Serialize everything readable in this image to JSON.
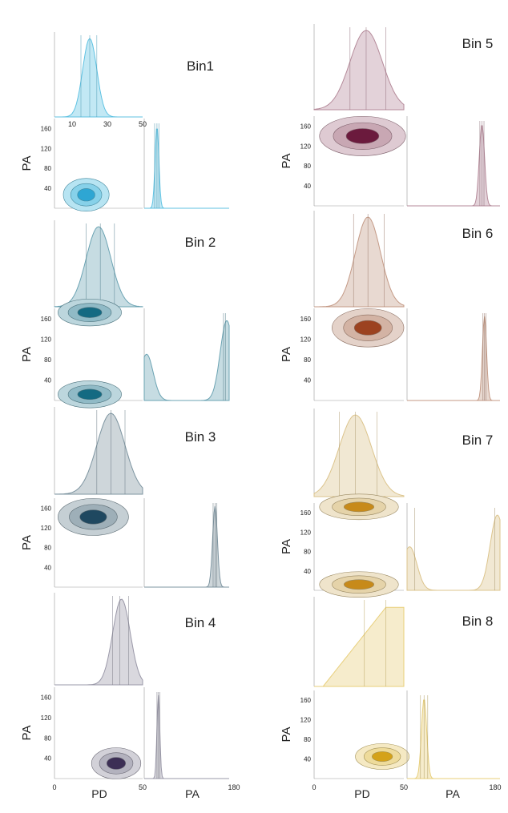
{
  "chart_data": {
    "type": "corner-plot",
    "x_param": "PD",
    "y_param": "PA",
    "pd_range": [
      0,
      50
    ],
    "pa_range": [
      0,
      180
    ],
    "pd_ticks": [
      10,
      30,
      50
    ],
    "pd_ticks_bottom": [
      0,
      50
    ],
    "pa_ticks": [
      40,
      80,
      120,
      160
    ],
    "pa_hist_ticks": [
      0,
      180
    ],
    "bins": [
      {
        "title": "Bin1",
        "color": "#5fc2e2",
        "dark": "#2ea6d3",
        "pd_mean": 20,
        "pd_sd": 4,
        "pd_q": [
          15,
          20,
          24
        ],
        "pa_mode": "single",
        "pa_mean": 27,
        "pa_sd": 4,
        "pa_q": [
          22,
          27,
          31
        ],
        "cx": 18,
        "cy": 27,
        "rx": 13,
        "ry": 15
      },
      {
        "title": "Bin 2",
        "color": "#6ba3b3",
        "dark": "#146a82",
        "pd_mean": 25,
        "pd_sd": 7,
        "pd_q": [
          18,
          26,
          34
        ],
        "pa_mode": "bimodal",
        "pa_q": [
          168,
          172
        ],
        "cx": 20,
        "cy": 12,
        "rx": 18,
        "ry": 14
      },
      {
        "title": "Bin 3",
        "color": "#7d94a0",
        "dark": "#1f4860",
        "pd_mean": 32,
        "pd_sd": 8,
        "pd_q": [
          24,
          32,
          40
        ],
        "pa_mode": "single",
        "pa_mean": 150,
        "pa_sd": 5,
        "pa_q": [
          146,
          150,
          154
        ],
        "cx": 22,
        "cy": 142,
        "rx": 20,
        "ry": 17
      },
      {
        "title": "Bin 4",
        "color": "#9a98a8",
        "dark": "#3c2f55",
        "pd_mean": 38,
        "pd_sd": 5,
        "pd_q": [
          33,
          37,
          42
        ],
        "pa_mode": "single",
        "pa_mean": 30,
        "pa_sd": 3,
        "pa_q": [
          27,
          30,
          33
        ],
        "cx": 35,
        "cy": 30,
        "rx": 14,
        "ry": 14
      },
      {
        "title": "Bin 5",
        "color": "#b58a9a",
        "dark": "#6b1a3d",
        "pd_mean": 29,
        "pd_sd": 9,
        "pd_q": [
          20,
          29,
          40
        ],
        "pa_mode": "single",
        "pa_mean": 145,
        "pa_sd": 5,
        "pa_q": [
          141,
          145,
          149
        ],
        "cx": 27,
        "cy": 140,
        "rx": 24,
        "ry": 18
      },
      {
        "title": "Bin 6",
        "color": "#c49a86",
        "dark": "#9c4220",
        "pd_mean": 30,
        "pd_sd": 7,
        "pd_q": [
          22,
          30,
          39
        ],
        "pa_mode": "single",
        "pa_mean": 150,
        "pa_sd": 4,
        "pa_q": [
          147,
          150,
          153
        ],
        "cx": 30,
        "cy": 142,
        "rx": 20,
        "ry": 17
      },
      {
        "title": "Bin 7",
        "color": "#dcc48c",
        "dark": "#c78a1a",
        "pd_mean": 23,
        "pd_sd": 9,
        "pd_q": [
          14,
          23,
          35
        ],
        "pa_mode": "bimodal",
        "pa_q": [
          15,
          170
        ],
        "cx": 25,
        "cy": 20,
        "rx": 22,
        "ry": 18
      },
      {
        "title": "Bin 8",
        "color": "#e8cf7a",
        "dark": "#d4a21a",
        "pd_mean": 40,
        "pd_sd": 12,
        "pd_q": [
          28,
          40
        ],
        "pa_mode": "single",
        "pa_mean": 33,
        "pa_sd": 5,
        "pa_q": [
          26,
          33,
          40
        ],
        "cx": 38,
        "cy": 45,
        "rx": 15,
        "ry": 12
      }
    ]
  }
}
